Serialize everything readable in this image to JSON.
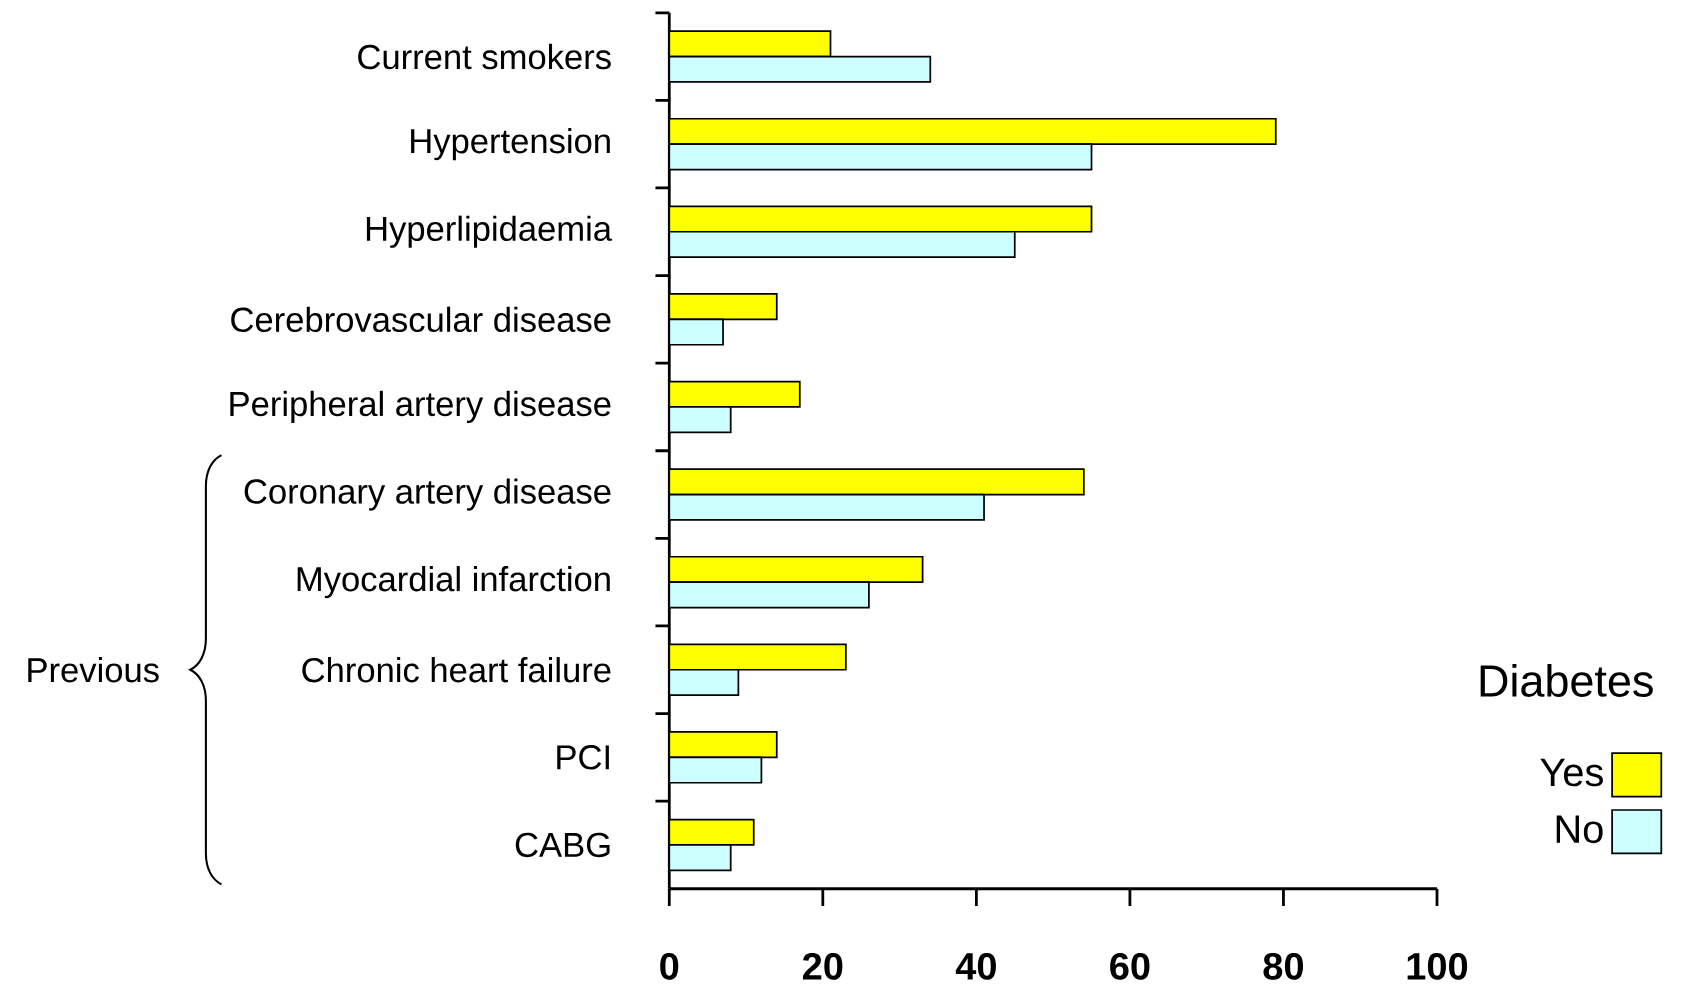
{
  "chart_data": {
    "type": "bar",
    "orientation": "horizontal",
    "categories": [
      "Current smokers",
      "Hypertension",
      "Hyperlipidaemia",
      "Cerebrovascular disease",
      "Peripheral artery disease",
      "Coronary artery disease",
      "Myocardial infarction",
      "Chronic heart failure",
      "PCI",
      "CABG"
    ],
    "series": [
      {
        "name": "Yes",
        "color": "#ffff00",
        "values": [
          21,
          79,
          55,
          14,
          17,
          54,
          33,
          23,
          14,
          11
        ]
      },
      {
        "name": "No",
        "color": "#ccffff",
        "values": [
          34,
          55,
          45,
          7,
          8,
          41,
          26,
          9,
          12,
          8
        ]
      }
    ],
    "xlim": [
      0,
      100
    ],
    "xticks": [
      0,
      20,
      40,
      60,
      80,
      100
    ],
    "legend_title": "Diabetes",
    "legend": "bottom right",
    "annotations": [
      "Previous"
    ]
  }
}
